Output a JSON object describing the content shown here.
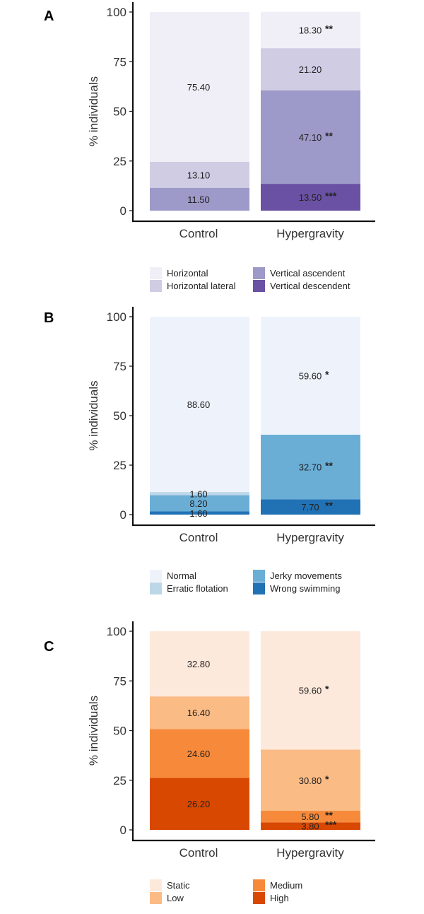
{
  "panels": [
    {
      "letter": "A",
      "chart_data": {
        "type": "bar",
        "stacked": true,
        "ylabel": "% individuals",
        "ylim": [
          0,
          100
        ],
        "yticks": [
          "0",
          "25",
          "50",
          "75",
          "100"
        ],
        "categories": [
          "Control",
          "Hypergravity"
        ],
        "series": [
          {
            "name": "Horizontal",
            "color": "#f0eff7",
            "values": [
              75.4,
              18.3
            ],
            "labels": [
              "75.40",
              "18.30"
            ],
            "significance": [
              "",
              "**"
            ]
          },
          {
            "name": "Horizontal lateral",
            "color": "#cfcce4",
            "values": [
              13.1,
              21.2
            ],
            "labels": [
              "13.10",
              "21.20"
            ],
            "significance": [
              "",
              ""
            ]
          },
          {
            "name": "Vertical ascendent",
            "color": "#9d99c8",
            "values": [
              11.5,
              47.1
            ],
            "labels": [
              "11.50",
              "47.10"
            ],
            "significance": [
              "",
              "**"
            ]
          },
          {
            "name": "Vertical descendent",
            "color": "#6a51a3",
            "values": [
              0,
              13.5
            ],
            "labels": [
              "",
              "13.50"
            ],
            "significance": [
              "",
              "***"
            ]
          }
        ],
        "legend_placement": "bottom"
      }
    },
    {
      "letter": "B",
      "chart_data": {
        "type": "bar",
        "stacked": true,
        "ylabel": "% individuals",
        "ylim": [
          0,
          100
        ],
        "yticks": [
          "0",
          "25",
          "50",
          "75",
          "100"
        ],
        "categories": [
          "Control",
          "Hypergravity"
        ],
        "series": [
          {
            "name": "Normal",
            "color": "#eef3fb",
            "values": [
              88.6,
              59.6
            ],
            "labels": [
              "88.60",
              "59.60"
            ],
            "significance": [
              "",
              "*"
            ]
          },
          {
            "name": "Erratic flotation",
            "color": "#bcd7e8",
            "values": [
              1.6,
              0
            ],
            "labels": [
              "1.60",
              ""
            ],
            "significance": [
              "",
              ""
            ]
          },
          {
            "name": "Jerky movements",
            "color": "#6aaed6",
            "values": [
              8.2,
              32.7
            ],
            "labels": [
              "8.20",
              "32.70"
            ],
            "significance": [
              "",
              "**"
            ]
          },
          {
            "name": "Wrong swimming",
            "color": "#2171b5",
            "values": [
              1.6,
              7.7
            ],
            "labels": [
              "1.60",
              "7.70"
            ],
            "significance": [
              "",
              "**"
            ]
          }
        ],
        "legend_placement": "bottom"
      }
    },
    {
      "letter": "C",
      "chart_data": {
        "type": "bar",
        "stacked": true,
        "ylabel": "% individuals",
        "ylim": [
          0,
          100
        ],
        "yticks": [
          "0",
          "25",
          "50",
          "75",
          "100"
        ],
        "categories": [
          "Control",
          "Hypergravity"
        ],
        "series": [
          {
            "name": "Static",
            "color": "#fde9dc",
            "values": [
              32.8,
              59.6
            ],
            "labels": [
              "32.80",
              "59.60"
            ],
            "significance": [
              "",
              "*"
            ]
          },
          {
            "name": "Low",
            "color": "#fbbb85",
            "values": [
              16.4,
              30.8
            ],
            "labels": [
              "16.40",
              "30.80"
            ],
            "significance": [
              "",
              "*"
            ]
          },
          {
            "name": "Medium",
            "color": "#f68a3a",
            "values": [
              24.6,
              5.8
            ],
            "labels": [
              "24.60",
              "5.80"
            ],
            "significance": [
              "",
              "**"
            ]
          },
          {
            "name": "High",
            "color": "#d94801",
            "values": [
              26.2,
              3.8
            ],
            "labels": [
              "26.20",
              "3.80"
            ],
            "significance": [
              "",
              "***"
            ]
          }
        ],
        "legend_placement": "bottom"
      }
    }
  ]
}
